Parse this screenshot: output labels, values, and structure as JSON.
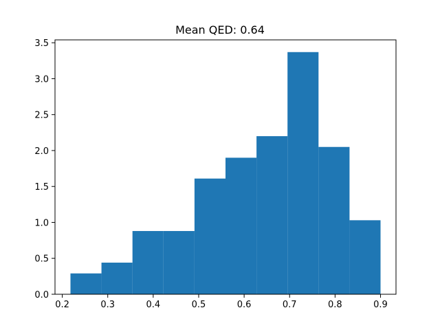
{
  "chart_data": {
    "type": "bar",
    "title": "Mean QED: 0.64",
    "xlabel": "",
    "ylabel": "",
    "bar_color": "#1f77b4",
    "bin_edges": [
      0.218,
      0.2862,
      0.3544,
      0.4226,
      0.4908,
      0.559,
      0.6272,
      0.6954,
      0.7636,
      0.8318,
      0.9
    ],
    "values": [
      0.29,
      0.44,
      0.88,
      0.88,
      1.61,
      1.9,
      2.2,
      3.37,
      2.05,
      1.03
    ],
    "xlim": [
      0.184,
      0.934
    ],
    "ylim": [
      0.0,
      3.54
    ],
    "xticks": [
      0.2,
      0.3,
      0.4,
      0.5,
      0.6,
      0.7,
      0.8,
      0.9
    ],
    "xtick_labels": [
      "0.2",
      "0.3",
      "0.4",
      "0.5",
      "0.6",
      "0.7",
      "0.8",
      "0.9"
    ],
    "yticks": [
      0.0,
      0.5,
      1.0,
      1.5,
      2.0,
      2.5,
      3.0,
      3.5
    ],
    "ytick_labels": [
      "0.0",
      "0.5",
      "1.0",
      "1.5",
      "2.0",
      "2.5",
      "3.0",
      "3.5"
    ],
    "grid": false,
    "legend": "none"
  }
}
